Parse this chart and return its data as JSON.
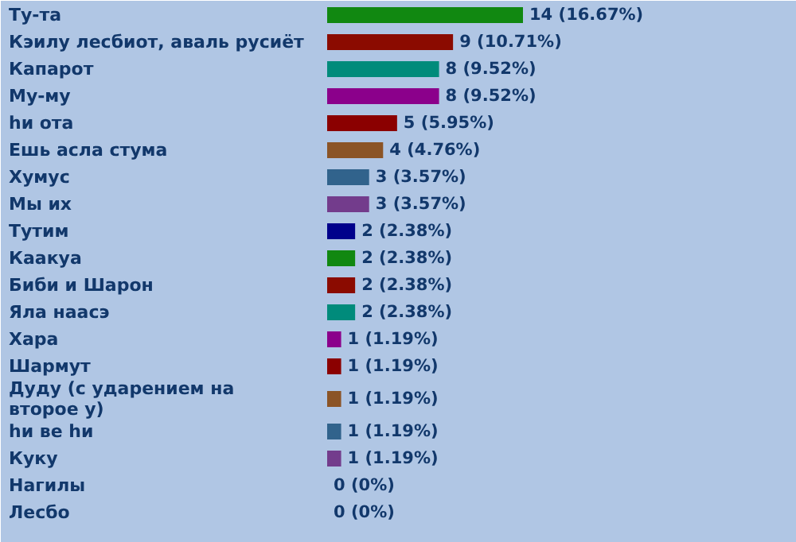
{
  "chart_data": {
    "type": "bar",
    "orientation": "horizontal",
    "categories": [
      "Ту-та",
      "Кэилу лесбиот, аваль русиёт",
      "Капарот",
      "Му-му",
      "hи ота",
      "Ешь асла стума",
      "Хумус",
      "Мы их",
      "Тутим",
      "Каакуа",
      "Биби и Шарон",
      "Яла наасэ",
      "Хара",
      "Шармут",
      "Дуду (с ударением на\nвторое у)",
      "hи ве hи",
      "Куку",
      "Нагилы",
      "Лесбо"
    ],
    "values": [
      14,
      9,
      8,
      8,
      5,
      4,
      3,
      3,
      2,
      2,
      2,
      2,
      1,
      1,
      1,
      1,
      1,
      0,
      0
    ],
    "colors": [
      "#118811",
      "#8b0b00",
      "#008b7b",
      "#8b008b",
      "#8b0000",
      "#8b5426",
      "#31638c",
      "#733c8c",
      "#00008b",
      "#118811",
      "#8b0b00",
      "#008b7b",
      "#8b008b",
      "#8b0000",
      "#8b5426",
      "#31638c",
      "#733c8c",
      null,
      null
    ],
    "value_labels": [
      "14 (16.67%)",
      "9 (10.71%)",
      "8 (9.52%)",
      "8 (9.52%)",
      "5 (5.95%)",
      "4 (4.76%)",
      "3 (3.57%)",
      "3 (3.57%)",
      "2 (2.38%)",
      "2 (2.38%)",
      "2 (2.38%)",
      "2 (2.38%)",
      "1 (1.19%)",
      "1 (1.19%)",
      "1 (1.19%)",
      "1 (1.19%)",
      "1 (1.19%)",
      "0 (0%)",
      "0 (0%)"
    ]
  }
}
